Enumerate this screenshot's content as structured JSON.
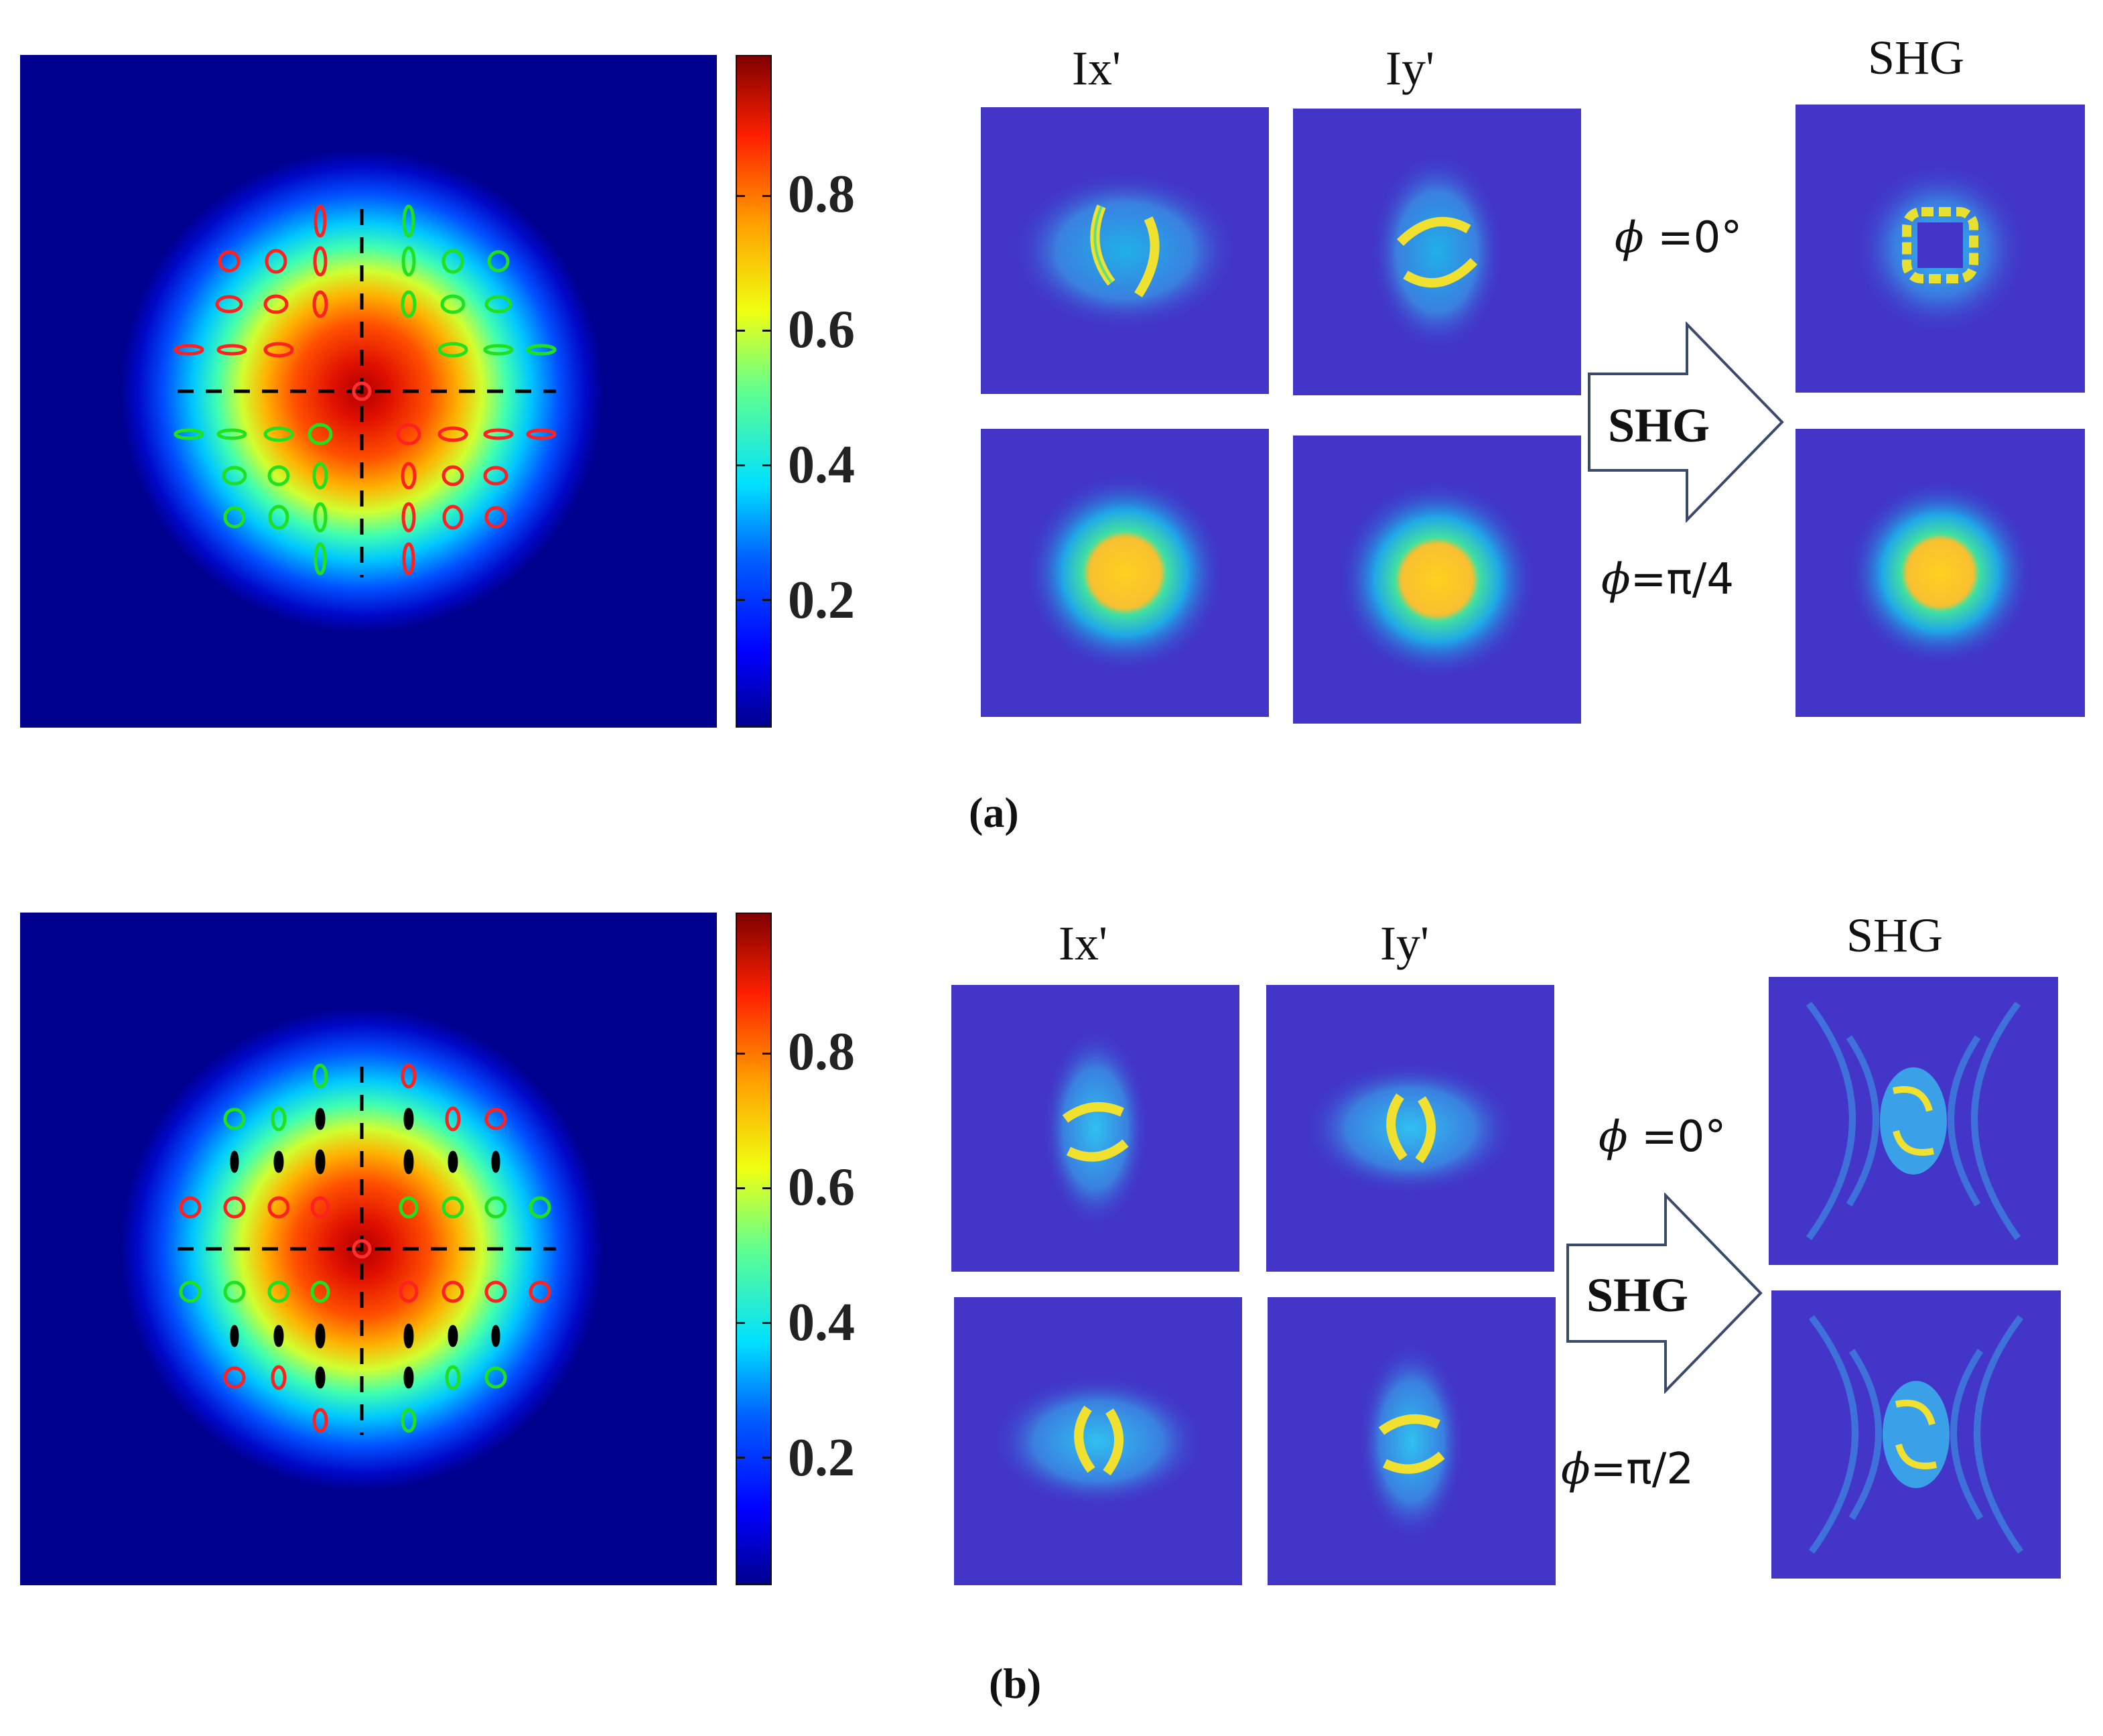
{
  "colorbar_ticks": [
    "0.8",
    "0.6",
    "0.4",
    "0.2"
  ],
  "panel_a": {
    "caption": "(a)",
    "col_labels": [
      "Ix'",
      "Iy'",
      "SHG"
    ],
    "phi_top": {
      "symbol": "ϕ",
      "value": " =0°"
    },
    "phi_bottom": {
      "symbol": "ϕ",
      "value": "=π/4"
    },
    "arrow_label": "SHG"
  },
  "panel_b": {
    "caption": "(b)",
    "col_labels": [
      "Ix'",
      "Iy'",
      "SHG"
    ],
    "phi_top": {
      "symbol": "ϕ",
      "value": " =0°"
    },
    "phi_bottom": {
      "symbol": "ϕ",
      "value": "=π/2"
    },
    "arrow_label": "SHG"
  },
  "colors": {
    "jet_dark_blue": "#00008f",
    "field_blue": "#4235c8",
    "ellipse_red": "#ff2020",
    "ellipse_green": "#20e020",
    "ellipse_black": "#000000"
  }
}
